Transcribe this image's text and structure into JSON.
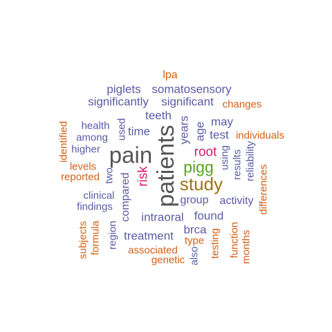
{
  "palette": {
    "purple": "#5b5aa4",
    "orange": "#d35f14",
    "gray": "#555555",
    "magenta": "#d6186f",
    "green": "#58a31c",
    "brown": "#9c7318"
  },
  "words": [
    {
      "text": "patients",
      "color": "gray"
    },
    {
      "text": "pain",
      "color": "gray"
    },
    {
      "text": "study",
      "color": "brown"
    },
    {
      "text": "pigg",
      "color": "green"
    },
    {
      "text": "root",
      "color": "magenta"
    },
    {
      "text": "risk",
      "color": "magenta"
    },
    {
      "text": "lpa",
      "color": "orange"
    },
    {
      "text": "piglets",
      "color": "purple"
    },
    {
      "text": "somatosensory",
      "color": "purple"
    },
    {
      "text": "significantly",
      "color": "purple"
    },
    {
      "text": "significant",
      "color": "purple"
    },
    {
      "text": "changes",
      "color": "orange"
    },
    {
      "text": "teeth",
      "color": "purple"
    },
    {
      "text": "may",
      "color": "purple"
    },
    {
      "text": "health",
      "color": "purple"
    },
    {
      "text": "used",
      "color": "purple"
    },
    {
      "text": "time",
      "color": "purple"
    },
    {
      "text": "years",
      "color": "purple"
    },
    {
      "text": "age",
      "color": "purple"
    },
    {
      "text": "test",
      "color": "purple"
    },
    {
      "text": "individuals",
      "color": "orange"
    },
    {
      "text": "identified",
      "color": "orange"
    },
    {
      "text": "among",
      "color": "purple"
    },
    {
      "text": "higher",
      "color": "purple"
    },
    {
      "text": "using",
      "color": "purple"
    },
    {
      "text": "results",
      "color": "purple"
    },
    {
      "text": "reliability",
      "color": "purple"
    },
    {
      "text": "levels",
      "color": "orange"
    },
    {
      "text": "two",
      "color": "purple"
    },
    {
      "text": "reported",
      "color": "orange"
    },
    {
      "text": "compared",
      "color": "purple"
    },
    {
      "text": "differences",
      "color": "orange"
    },
    {
      "text": "clinical",
      "color": "purple"
    },
    {
      "text": "group",
      "color": "purple"
    },
    {
      "text": "activity",
      "color": "purple"
    },
    {
      "text": "findings",
      "color": "purple"
    },
    {
      "text": "found",
      "color": "purple"
    },
    {
      "text": "intraoral",
      "color": "purple"
    },
    {
      "text": "region",
      "color": "purple"
    },
    {
      "text": "brca",
      "color": "purple"
    },
    {
      "text": "subjects",
      "color": "orange"
    },
    {
      "text": "formula",
      "color": "orange"
    },
    {
      "text": "treatment",
      "color": "purple"
    },
    {
      "text": "function",
      "color": "orange"
    },
    {
      "text": "type",
      "color": "orange"
    },
    {
      "text": "testing",
      "color": "orange"
    },
    {
      "text": "months",
      "color": "orange"
    },
    {
      "text": "associated",
      "color": "orange"
    },
    {
      "text": "genetic",
      "color": "orange"
    },
    {
      "text": "also",
      "color": "purple"
    }
  ]
}
